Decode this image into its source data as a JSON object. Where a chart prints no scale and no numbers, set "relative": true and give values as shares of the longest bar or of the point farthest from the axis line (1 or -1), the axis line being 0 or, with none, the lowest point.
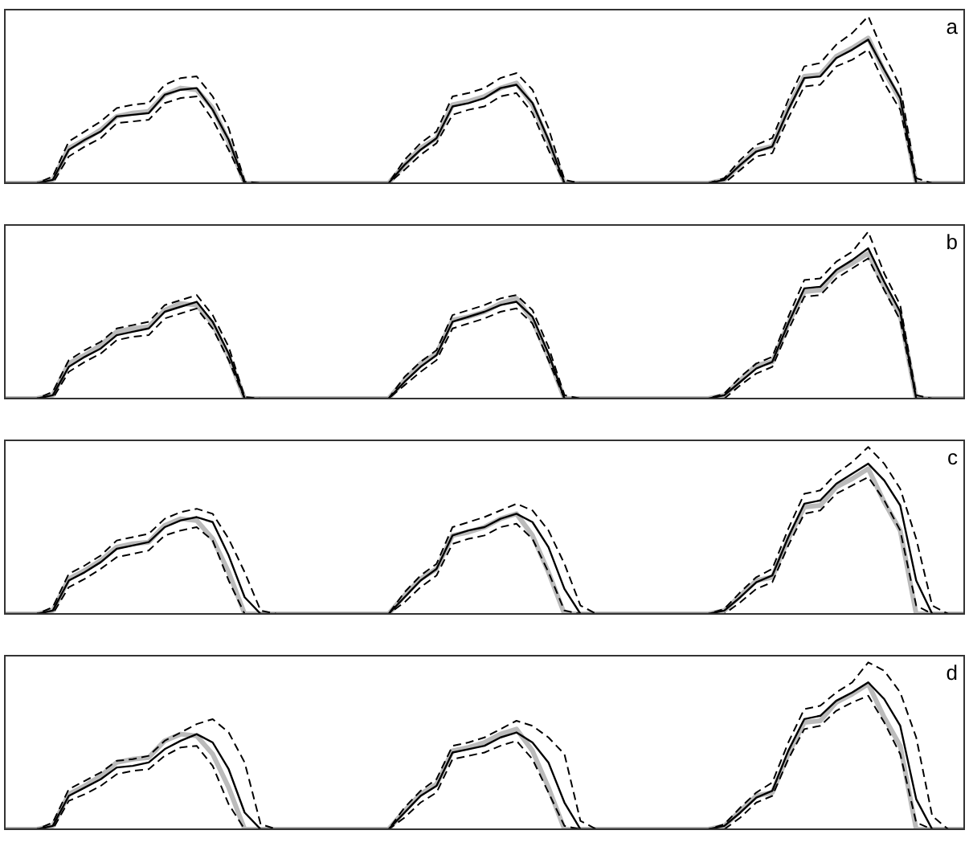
{
  "chart_data": [
    {
      "type": "line",
      "title": "a",
      "relative": true,
      "legend": false,
      "marker": "none",
      "categories": [
        null,
        null,
        null,
        null,
        null,
        null,
        null,
        null,
        null,
        null,
        null,
        null,
        null,
        null,
        null,
        null,
        null,
        null,
        null,
        null,
        null,
        null,
        null,
        null,
        null,
        null,
        null,
        null,
        null,
        null,
        null,
        null,
        null,
        null,
        null,
        null,
        null,
        null,
        null,
        null,
        null,
        null,
        null,
        null,
        null,
        null,
        null,
        null,
        null,
        null,
        null,
        null,
        null,
        null,
        null,
        null,
        null,
        null,
        null,
        null,
        null
      ],
      "series": [
        {
          "color": "#bbbbbb",
          "line_style": "solid",
          "values": [
            0,
            0,
            0,
            0.02,
            0.21,
            0.26,
            0.32,
            0.4,
            0.42,
            0.43,
            0.53,
            0.57,
            0.56,
            0.45,
            0.25,
            0,
            0,
            0,
            0,
            0,
            0,
            0,
            0,
            0,
            0,
            0.11,
            0.21,
            0.27,
            0.47,
            0.49,
            0.52,
            0.57,
            0.6,
            0.47,
            0.25,
            0,
            0,
            0,
            0,
            0,
            0,
            0,
            0,
            0,
            0,
            0.02,
            0.11,
            0.2,
            0.22,
            0.45,
            0.64,
            0.65,
            0.76,
            0.81,
            0.87,
            0.67,
            0.5,
            0,
            0,
            0,
            0
          ]
        },
        {
          "color": "#000000",
          "line_style": "solid",
          "values": [
            0,
            0,
            0,
            0.02,
            0.2,
            0.26,
            0.31,
            0.4,
            0.41,
            0.42,
            0.53,
            0.56,
            0.57,
            0.44,
            0.26,
            0,
            0,
            0,
            0,
            0,
            0,
            0,
            0,
            0,
            0,
            0.11,
            0.2,
            0.27,
            0.46,
            0.48,
            0.51,
            0.57,
            0.59,
            0.48,
            0.26,
            0,
            0,
            0,
            0,
            0,
            0,
            0,
            0,
            0,
            0,
            0.02,
            0.11,
            0.19,
            0.22,
            0.44,
            0.63,
            0.64,
            0.75,
            0.8,
            0.86,
            0.68,
            0.51,
            0,
            0,
            0,
            0
          ]
        },
        {
          "color": "#000000",
          "line_style": "dashed",
          "values": [
            0,
            0,
            0,
            0.04,
            0.25,
            0.31,
            0.37,
            0.45,
            0.47,
            0.48,
            0.59,
            0.63,
            0.64,
            0.52,
            0.33,
            0.01,
            0,
            0,
            0,
            0,
            0,
            0,
            0,
            0,
            0,
            0.14,
            0.24,
            0.31,
            0.52,
            0.54,
            0.57,
            0.63,
            0.66,
            0.56,
            0.33,
            0.02,
            0,
            0,
            0,
            0,
            0,
            0,
            0,
            0,
            0,
            0.03,
            0.14,
            0.23,
            0.27,
            0.5,
            0.7,
            0.72,
            0.83,
            0.9,
            1,
            0.77,
            0.58,
            0.03,
            0,
            0,
            0
          ]
        },
        {
          "color": "#000000",
          "line_style": "dashed",
          "values": [
            0,
            0,
            0,
            0,
            0.16,
            0.22,
            0.27,
            0.36,
            0.37,
            0.38,
            0.48,
            0.51,
            0.52,
            0.38,
            0.2,
            0,
            0,
            0,
            0,
            0,
            0,
            0,
            0,
            0,
            0,
            0.08,
            0.17,
            0.24,
            0.41,
            0.44,
            0.46,
            0.52,
            0.54,
            0.42,
            0.2,
            0,
            0,
            0,
            0,
            0,
            0,
            0,
            0,
            0,
            0,
            0,
            0.08,
            0.16,
            0.18,
            0.39,
            0.58,
            0.59,
            0.7,
            0.74,
            0.8,
            0.6,
            0.44,
            0,
            0,
            0,
            0
          ]
        }
      ]
    },
    {
      "type": "line",
      "title": "b",
      "relative": true,
      "legend": false,
      "marker": "none",
      "categories": [
        null,
        null,
        null,
        null,
        null,
        null,
        null,
        null,
        null,
        null,
        null,
        null,
        null,
        null,
        null,
        null,
        null,
        null,
        null,
        null,
        null,
        null,
        null,
        null,
        null,
        null,
        null,
        null,
        null,
        null,
        null,
        null,
        null,
        null,
        null,
        null,
        null,
        null,
        null,
        null,
        null,
        null,
        null,
        null,
        null,
        null,
        null,
        null,
        null,
        null,
        null,
        null,
        null,
        null,
        null,
        null,
        null,
        null,
        null,
        null,
        null
      ],
      "series": [
        {
          "color": "#bbbbbb",
          "line_style": "solid",
          "values": [
            0,
            0,
            0,
            0.02,
            0.21,
            0.26,
            0.32,
            0.4,
            0.42,
            0.43,
            0.53,
            0.57,
            0.56,
            0.45,
            0.25,
            0,
            0,
            0,
            0,
            0,
            0,
            0,
            0,
            0,
            0,
            0.11,
            0.21,
            0.27,
            0.47,
            0.49,
            0.52,
            0.57,
            0.6,
            0.47,
            0.25,
            0,
            0,
            0,
            0,
            0,
            0,
            0,
            0,
            0,
            0,
            0.02,
            0.11,
            0.2,
            0.22,
            0.45,
            0.64,
            0.65,
            0.76,
            0.81,
            0.87,
            0.67,
            0.5,
            0,
            0,
            0,
            0
          ]
        },
        {
          "color": "#000000",
          "line_style": "solid",
          "values": [
            0,
            0,
            0,
            0.02,
            0.19,
            0.25,
            0.3,
            0.38,
            0.4,
            0.42,
            0.52,
            0.55,
            0.58,
            0.46,
            0.27,
            0,
            0,
            0,
            0,
            0,
            0,
            0,
            0,
            0,
            0,
            0.1,
            0.19,
            0.26,
            0.46,
            0.49,
            0.52,
            0.56,
            0.58,
            0.49,
            0.27,
            0,
            0,
            0,
            0,
            0,
            0,
            0,
            0,
            0,
            0,
            0.02,
            0.1,
            0.18,
            0.22,
            0.45,
            0.66,
            0.67,
            0.77,
            0.83,
            0.9,
            0.7,
            0.52,
            0,
            0,
            0,
            0
          ]
        },
        {
          "color": "#000000",
          "line_style": "dashed",
          "values": [
            0,
            0,
            0,
            0.04,
            0.23,
            0.29,
            0.34,
            0.42,
            0.44,
            0.46,
            0.56,
            0.59,
            0.62,
            0.5,
            0.31,
            0.01,
            0,
            0,
            0,
            0,
            0,
            0,
            0,
            0,
            0,
            0.13,
            0.22,
            0.29,
            0.5,
            0.53,
            0.56,
            0.6,
            0.62,
            0.53,
            0.31,
            0.02,
            0,
            0,
            0,
            0,
            0,
            0,
            0,
            0,
            0,
            0.03,
            0.13,
            0.21,
            0.25,
            0.49,
            0.71,
            0.72,
            0.82,
            0.88,
            1,
            0.75,
            0.56,
            0.02,
            0,
            0,
            0
          ]
        },
        {
          "color": "#000000",
          "line_style": "dashed",
          "values": [
            0,
            0,
            0,
            0,
            0.16,
            0.22,
            0.27,
            0.35,
            0.37,
            0.38,
            0.48,
            0.51,
            0.54,
            0.42,
            0.23,
            0,
            0,
            0,
            0,
            0,
            0,
            0,
            0,
            0,
            0,
            0.08,
            0.16,
            0.23,
            0.42,
            0.45,
            0.48,
            0.52,
            0.54,
            0.45,
            0.23,
            0,
            0,
            0,
            0,
            0,
            0,
            0,
            0,
            0,
            0,
            0,
            0.08,
            0.15,
            0.19,
            0.41,
            0.61,
            0.62,
            0.72,
            0.78,
            0.84,
            0.65,
            0.47,
            0,
            0,
            0,
            0
          ]
        }
      ]
    },
    {
      "type": "line",
      "title": "c",
      "relative": true,
      "legend": false,
      "marker": "none",
      "categories": [
        null,
        null,
        null,
        null,
        null,
        null,
        null,
        null,
        null,
        null,
        null,
        null,
        null,
        null,
        null,
        null,
        null,
        null,
        null,
        null,
        null,
        null,
        null,
        null,
        null,
        null,
        null,
        null,
        null,
        null,
        null,
        null,
        null,
        null,
        null,
        null,
        null,
        null,
        null,
        null,
        null,
        null,
        null,
        null,
        null,
        null,
        null,
        null,
        null,
        null,
        null,
        null,
        null,
        null,
        null,
        null,
        null,
        null,
        null,
        null,
        null
      ],
      "series": [
        {
          "color": "#bbbbbb",
          "line_style": "solid",
          "values": [
            0,
            0,
            0,
            0.02,
            0.21,
            0.26,
            0.32,
            0.4,
            0.42,
            0.43,
            0.53,
            0.57,
            0.56,
            0.45,
            0.25,
            0,
            0,
            0,
            0,
            0,
            0,
            0,
            0,
            0,
            0,
            0.11,
            0.21,
            0.27,
            0.47,
            0.49,
            0.52,
            0.57,
            0.6,
            0.47,
            0.25,
            0,
            0,
            0,
            0,
            0,
            0,
            0,
            0,
            0,
            0,
            0.02,
            0.11,
            0.2,
            0.22,
            0.45,
            0.64,
            0.65,
            0.76,
            0.81,
            0.87,
            0.67,
            0.5,
            0,
            0,
            0,
            0
          ]
        },
        {
          "color": "#000000",
          "line_style": "solid",
          "values": [
            0,
            0,
            0,
            0.02,
            0.2,
            0.25,
            0.31,
            0.39,
            0.41,
            0.43,
            0.52,
            0.56,
            0.58,
            0.55,
            0.35,
            0.1,
            0,
            0,
            0,
            0,
            0,
            0,
            0,
            0,
            0,
            0.1,
            0.2,
            0.27,
            0.47,
            0.5,
            0.52,
            0.57,
            0.6,
            0.55,
            0.4,
            0.15,
            0,
            0,
            0,
            0,
            0,
            0,
            0,
            0,
            0,
            0.02,
            0.1,
            0.19,
            0.23,
            0.46,
            0.66,
            0.68,
            0.78,
            0.84,
            0.9,
            0.8,
            0.65,
            0.2,
            0,
            0,
            0
          ]
        },
        {
          "color": "#000000",
          "line_style": "dashed",
          "values": [
            0,
            0,
            0,
            0.04,
            0.24,
            0.29,
            0.35,
            0.44,
            0.46,
            0.48,
            0.57,
            0.61,
            0.63,
            0.6,
            0.45,
            0.25,
            0.02,
            0,
            0,
            0,
            0,
            0,
            0,
            0,
            0,
            0.13,
            0.23,
            0.3,
            0.52,
            0.55,
            0.58,
            0.62,
            0.66,
            0.62,
            0.5,
            0.3,
            0.05,
            0,
            0,
            0,
            0,
            0,
            0,
            0,
            0,
            0.03,
            0.13,
            0.22,
            0.27,
            0.51,
            0.72,
            0.74,
            0.84,
            0.91,
            1,
            0.9,
            0.75,
            0.45,
            0.05,
            0,
            0
          ]
        },
        {
          "color": "#000000",
          "line_style": "dashed",
          "values": [
            0,
            0,
            0,
            0,
            0.16,
            0.21,
            0.27,
            0.34,
            0.36,
            0.38,
            0.47,
            0.5,
            0.52,
            0.44,
            0.2,
            0,
            0,
            0,
            0,
            0,
            0,
            0,
            0,
            0,
            0,
            0.07,
            0.16,
            0.23,
            0.42,
            0.45,
            0.47,
            0.52,
            0.54,
            0.45,
            0.25,
            0.02,
            0,
            0,
            0,
            0,
            0,
            0,
            0,
            0,
            0,
            0,
            0.07,
            0.15,
            0.19,
            0.41,
            0.6,
            0.62,
            0.72,
            0.77,
            0.82,
            0.68,
            0.5,
            0.05,
            0,
            0,
            0
          ]
        }
      ]
    },
    {
      "type": "line",
      "title": "d",
      "relative": true,
      "legend": false,
      "marker": "none",
      "categories": [
        null,
        null,
        null,
        null,
        null,
        null,
        null,
        null,
        null,
        null,
        null,
        null,
        null,
        null,
        null,
        null,
        null,
        null,
        null,
        null,
        null,
        null,
        null,
        null,
        null,
        null,
        null,
        null,
        null,
        null,
        null,
        null,
        null,
        null,
        null,
        null,
        null,
        null,
        null,
        null,
        null,
        null,
        null,
        null,
        null,
        null,
        null,
        null,
        null,
        null,
        null,
        null,
        null,
        null,
        null,
        null,
        null,
        null,
        null,
        null,
        null
      ],
      "series": [
        {
          "color": "#bbbbbb",
          "line_style": "solid",
          "values": [
            0,
            0,
            0,
            0.02,
            0.21,
            0.26,
            0.32,
            0.4,
            0.42,
            0.43,
            0.53,
            0.57,
            0.56,
            0.45,
            0.25,
            0,
            0,
            0,
            0,
            0,
            0,
            0,
            0,
            0,
            0,
            0.11,
            0.21,
            0.27,
            0.47,
            0.49,
            0.52,
            0.57,
            0.6,
            0.47,
            0.25,
            0,
            0,
            0,
            0,
            0,
            0,
            0,
            0,
            0,
            0,
            0.02,
            0.11,
            0.2,
            0.22,
            0.45,
            0.64,
            0.65,
            0.76,
            0.81,
            0.87,
            0.67,
            0.5,
            0,
            0,
            0,
            0
          ]
        },
        {
          "color": "#000000",
          "line_style": "solid",
          "values": [
            0,
            0,
            0,
            0.02,
            0.2,
            0.25,
            0.3,
            0.37,
            0.38,
            0.4,
            0.48,
            0.53,
            0.57,
            0.52,
            0.36,
            0.1,
            0,
            0,
            0,
            0,
            0,
            0,
            0,
            0,
            0,
            0.1,
            0.2,
            0.26,
            0.46,
            0.48,
            0.5,
            0.55,
            0.58,
            0.52,
            0.4,
            0.16,
            0,
            0,
            0,
            0,
            0,
            0,
            0,
            0,
            0,
            0.02,
            0.1,
            0.19,
            0.23,
            0.47,
            0.66,
            0.68,
            0.77,
            0.82,
            0.88,
            0.78,
            0.62,
            0.18,
            0,
            0,
            0
          ]
        },
        {
          "color": "#000000",
          "line_style": "dashed",
          "values": [
            0,
            0,
            0,
            0.04,
            0.24,
            0.29,
            0.34,
            0.41,
            0.42,
            0.44,
            0.53,
            0.58,
            0.63,
            0.66,
            0.58,
            0.4,
            0.03,
            0,
            0,
            0,
            0,
            0,
            0,
            0,
            0,
            0.13,
            0.23,
            0.3,
            0.5,
            0.52,
            0.55,
            0.6,
            0.65,
            0.62,
            0.55,
            0.45,
            0.05,
            0,
            0,
            0,
            0,
            0,
            0,
            0,
            0,
            0.03,
            0.13,
            0.22,
            0.28,
            0.52,
            0.72,
            0.74,
            0.82,
            0.88,
            1,
            0.95,
            0.82,
            0.55,
            0.08,
            0,
            0
          ]
        },
        {
          "color": "#000000",
          "line_style": "dashed",
          "values": [
            0,
            0,
            0,
            0,
            0.17,
            0.21,
            0.26,
            0.33,
            0.35,
            0.36,
            0.44,
            0.49,
            0.5,
            0.38,
            0.15,
            0,
            0,
            0,
            0,
            0,
            0,
            0,
            0,
            0,
            0,
            0.07,
            0.16,
            0.22,
            0.42,
            0.44,
            0.46,
            0.5,
            0.53,
            0.42,
            0.22,
            0.02,
            0,
            0,
            0,
            0,
            0,
            0,
            0,
            0,
            0,
            0,
            0.07,
            0.16,
            0.2,
            0.42,
            0.6,
            0.62,
            0.71,
            0.76,
            0.8,
            0.64,
            0.45,
            0.04,
            0,
            0,
            0
          ]
        }
      ]
    }
  ]
}
